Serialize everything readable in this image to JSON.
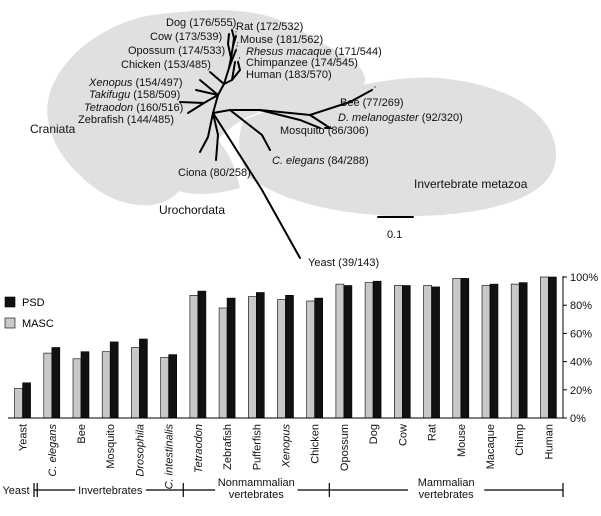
{
  "tree": {
    "clade_labels": {
      "craniata": "Craniata",
      "urochordata": "Urochordata",
      "invertebrate_metazoa": "Invertebrate metazoa"
    },
    "scale_bar_label": "0.1",
    "leaves": [
      {
        "id": "dog",
        "label": "Dog (176/555)"
      },
      {
        "id": "rat",
        "label": "Rat (172/532)"
      },
      {
        "id": "cow",
        "label": "Cow (173/539)"
      },
      {
        "id": "mouse",
        "label": "Mouse (181/562)"
      },
      {
        "id": "opossum",
        "label": "Opossum (174/533)"
      },
      {
        "id": "macaque",
        "label": "Rhesus macaque (171/544)",
        "italic": true
      },
      {
        "id": "chimp",
        "label": "Chimpanzee (174/545)"
      },
      {
        "id": "chicken",
        "label": "Chicken (153/485)"
      },
      {
        "id": "human",
        "label": "Human (183/570)"
      },
      {
        "id": "xenopus",
        "label": "Xenopus (154/497)",
        "italic_part": "Xenopus"
      },
      {
        "id": "takifugu",
        "label": "Takifugu (158/509)",
        "italic_part": "Takifugu"
      },
      {
        "id": "tetraodon",
        "label": "Tetraodon (160/516)",
        "italic_part": "Tetraodon"
      },
      {
        "id": "zebrafish",
        "label": "Zebrafish (144/485)"
      },
      {
        "id": "bee",
        "label": "Bee (77/269)"
      },
      {
        "id": "dmel",
        "label": "D. melanogaster (92/320)",
        "italic_part": "D. melanogaster"
      },
      {
        "id": "mosquito",
        "label": "Mosquito (86/306)"
      },
      {
        "id": "celegans",
        "label": "C. elegans (84/288)",
        "italic_part": "C. elegans"
      },
      {
        "id": "ciona",
        "label": "Ciona (80/258)"
      },
      {
        "id": "yeast",
        "label": "Yeast (39/143)"
      }
    ]
  },
  "chart_data": {
    "type": "bar",
    "categories": [
      "Yeast",
      "C. elegans",
      "Bee",
      "Mosquito",
      "Drosophila",
      "C. intestinalis",
      "Tetraodon",
      "Zebrafish",
      "Pufferfish",
      "Xenopus",
      "Chicken",
      "Opossum",
      "Dog",
      "Cow",
      "Rat",
      "Mouse",
      "Macaque",
      "Chimp",
      "Human"
    ],
    "italic_categories": [
      "C. elegans",
      "Drosophila",
      "C. intestinalis",
      "Tetraodon",
      "Xenopus"
    ],
    "series": [
      {
        "name": "MASC",
        "color": "#c8c8c8",
        "values": [
          21,
          46,
          42,
          47,
          50,
          43,
          87,
          78,
          86,
          84,
          83,
          95,
          96,
          94,
          94,
          99,
          94,
          95,
          100
        ]
      },
      {
        "name": "PSD",
        "color": "#111111",
        "values": [
          25,
          50,
          47,
          54,
          56,
          45,
          90,
          85,
          89,
          87,
          85,
          94,
          97,
          94,
          93,
          99,
          95,
          96,
          100
        ]
      }
    ],
    "legend_order": [
      "PSD",
      "MASC"
    ],
    "legend_position": "top-left",
    "ylim": [
      0,
      100
    ],
    "yticks": [
      "0%",
      "20%",
      "40%",
      "60%",
      "80%",
      "100%"
    ],
    "y_axis_side": "right",
    "grid": false,
    "groups": [
      {
        "label": "Yeast",
        "from": 0,
        "to": 0
      },
      {
        "label": "Invertebrates",
        "from": 1,
        "to": 5
      },
      {
        "label": "Nonmammalian vertebrates",
        "from": 6,
        "to": 10
      },
      {
        "label": "Mammalian vertebrates",
        "from": 11,
        "to": 18
      }
    ]
  }
}
